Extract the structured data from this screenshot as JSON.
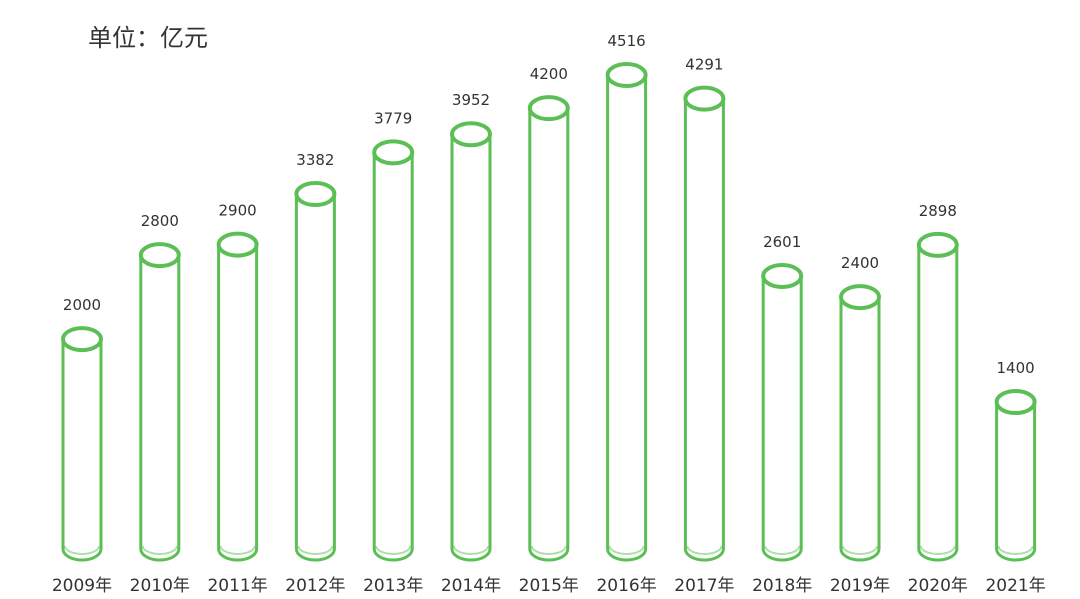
{
  "chart_data": {
    "type": "bar",
    "unit_label": "单位：亿元",
    "categories": [
      "2009年",
      "2010年",
      "2011年",
      "2012年",
      "2013年",
      "2014年",
      "2015年",
      "2016年",
      "2017年",
      "2018年",
      "2019年",
      "2020年",
      "2021年"
    ],
    "values": [
      2000,
      2800,
      2900,
      3382,
      3779,
      3952,
      4200,
      4516,
      4291,
      2601,
      2400,
      2898,
      1400
    ],
    "ylim": [
      0,
      4516
    ],
    "grid": false,
    "legend": "none",
    "bar_style": "outlined-cylinder",
    "colors": {
      "bar_stroke": "#5cbf55",
      "text": "#333333",
      "background": "#ffffff"
    }
  }
}
